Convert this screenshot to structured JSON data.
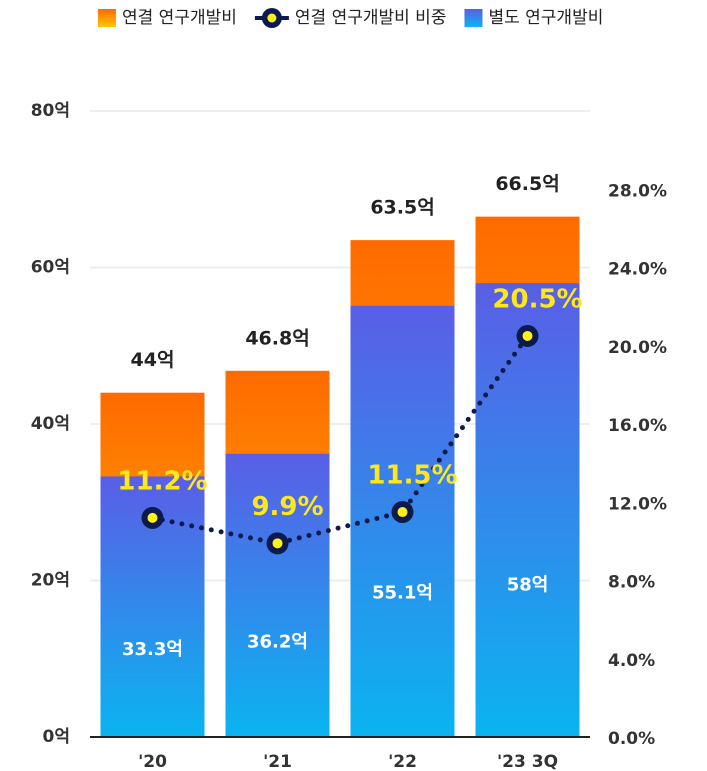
{
  "chart_data": {
    "type": "bar",
    "categories": [
      "'20",
      "'21",
      "'22",
      "'23 3Q"
    ],
    "series": [
      {
        "name": "연결 연구개발비",
        "type": "bar",
        "color": "#ff6a00",
        "values": [
          44,
          46.8,
          63.5,
          66.5
        ],
        "value_labels": [
          "44억",
          "46.8억",
          "63.5억",
          "66.5억"
        ]
      },
      {
        "name": "연결 연구개발비 비중",
        "type": "line",
        "axis": "y2",
        "color": "#0d1a4e",
        "values": [
          11.2,
          9.9,
          11.5,
          20.5
        ],
        "value_labels": [
          "11.2%",
          "9.9%",
          "11.5%",
          "20.5%"
        ]
      },
      {
        "name": "별도 연구개발비",
        "type": "bar",
        "color": "#5a5ee6",
        "values": [
          33.3,
          36.2,
          55.1,
          58
        ],
        "value_labels": [
          "33.3억",
          "36.2억",
          "55.1억",
          "58억"
        ]
      }
    ],
    "ylim": [
      0,
      80
    ],
    "yticks": [
      {
        "value": 0,
        "label": "0억"
      },
      {
        "value": 20,
        "label": "20억"
      },
      {
        "value": 40,
        "label": "40억"
      },
      {
        "value": 60,
        "label": "60억"
      },
      {
        "value": 80,
        "label": "80억"
      }
    ],
    "y2lim": [
      0,
      32
    ],
    "y2ticks": [
      {
        "value": 0,
        "label": "0.0%"
      },
      {
        "value": 4,
        "label": "4.0%"
      },
      {
        "value": 8,
        "label": "8.0%"
      },
      {
        "value": 12,
        "label": "12.0%"
      },
      {
        "value": 16,
        "label": "16.0%"
      },
      {
        "value": 20,
        "label": "20.0%"
      },
      {
        "value": 24,
        "label": "24.0%"
      },
      {
        "value": 28,
        "label": "28.0%"
      }
    ],
    "grid": true
  }
}
